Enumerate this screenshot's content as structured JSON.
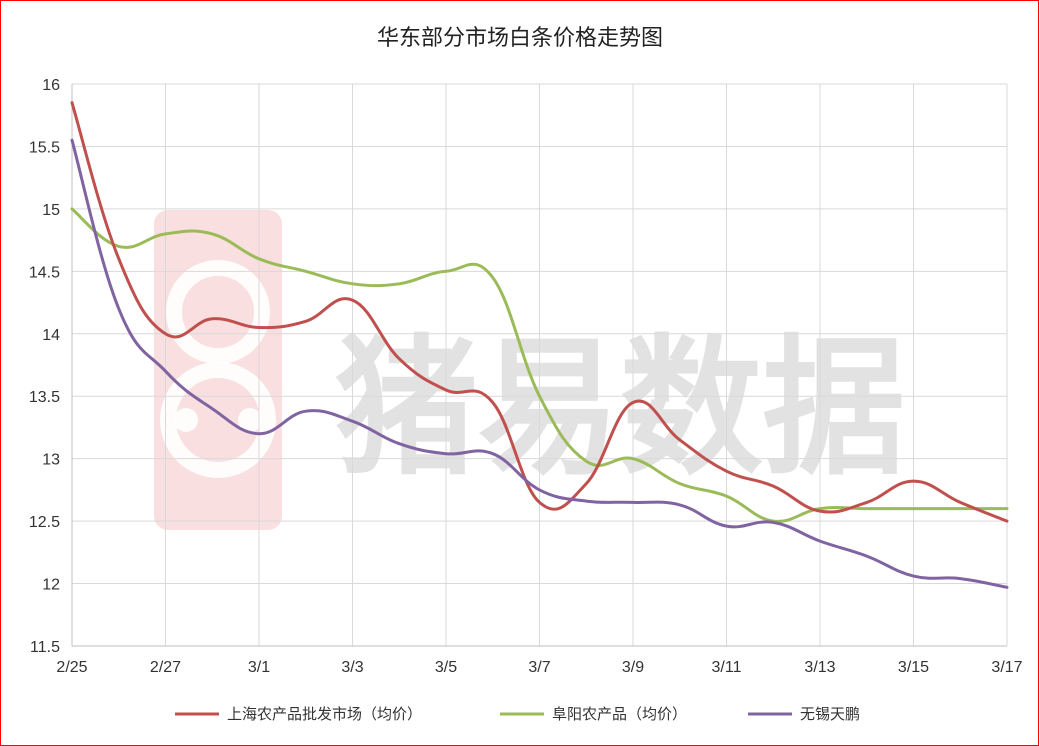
{
  "watermark": "猪易数据",
  "chart_data": {
    "type": "line",
    "title": "华东部分市场白条价格走势图",
    "x_tick_labels": [
      "2/25",
      "2/27",
      "3/1",
      "3/3",
      "3/5",
      "3/7",
      "3/9",
      "3/11",
      "3/13",
      "3/15",
      "3/17"
    ],
    "y_tick_labels": [
      "11.5",
      "12",
      "12.5",
      "13",
      "13.5",
      "14",
      "14.5",
      "15",
      "15.5",
      "16"
    ],
    "ylim": [
      11.5,
      16
    ],
    "x": [
      "2/25",
      "2/26",
      "2/27",
      "2/28",
      "3/1",
      "3/2",
      "3/3",
      "3/4",
      "3/5",
      "3/6",
      "3/7",
      "3/8",
      "3/9",
      "3/10",
      "3/11",
      "3/12",
      "3/13",
      "3/14",
      "3/15",
      "3/16",
      "3/17"
    ],
    "grid": true,
    "legend_position": "bottom",
    "series": [
      {
        "name": "上海农产品批发市场（均价）",
        "color": "#c0504d",
        "values": [
          15.85,
          14.6,
          14.0,
          14.12,
          14.05,
          14.1,
          14.27,
          13.8,
          13.55,
          13.45,
          12.65,
          12.8,
          13.45,
          13.15,
          12.9,
          12.78,
          12.58,
          12.65,
          12.82,
          12.65,
          12.5
        ]
      },
      {
        "name": "阜阳农产品（均价）",
        "color": "#9bbb59",
        "values": [
          15.0,
          14.7,
          14.8,
          14.8,
          14.6,
          14.5,
          14.4,
          14.4,
          14.5,
          14.45,
          13.5,
          12.98,
          13.0,
          12.8,
          12.7,
          12.5,
          12.6,
          12.6,
          12.6,
          12.6,
          12.6
        ]
      },
      {
        "name": "无锡天鹏",
        "color": "#8064a2",
        "values": [
          15.55,
          14.2,
          13.7,
          13.4,
          13.2,
          13.38,
          13.3,
          13.12,
          13.04,
          13.04,
          12.75,
          12.66,
          12.65,
          12.63,
          12.46,
          12.49,
          12.34,
          12.22,
          12.06,
          12.04,
          11.97
        ]
      }
    ]
  }
}
